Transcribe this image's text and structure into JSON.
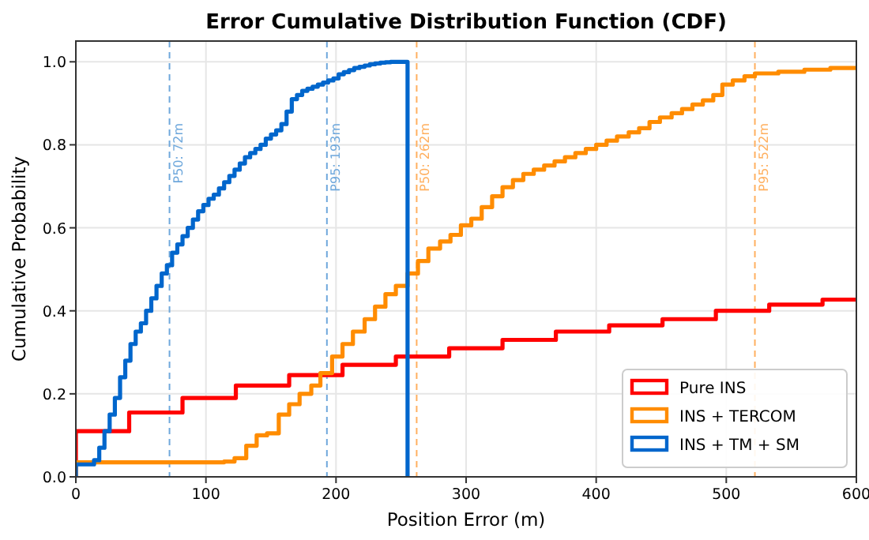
{
  "chart_data": {
    "type": "step",
    "title": "Error Cumulative Distribution Function (CDF)",
    "xlabel": "Position Error (m)",
    "ylabel": "Cumulative Probability",
    "xlim": [
      0,
      600
    ],
    "ylim": [
      0,
      1.05
    ],
    "xticks": [
      0,
      100,
      200,
      300,
      400,
      500,
      600
    ],
    "yticks": [
      {
        "value": 0,
        "label": "0.0"
      },
      0.2,
      0.4,
      0.6,
      0.8,
      {
        "value": 1,
        "label": "1.0"
      }
    ],
    "grid": true,
    "legend": "bottom right",
    "line_style": "solid",
    "series": [
      {
        "name": "Pure INS",
        "color": "#ff0000",
        "x": [
          0,
          0,
          41,
          82,
          123,
          164,
          205,
          246,
          287,
          328,
          369,
          410,
          451,
          492,
          533,
          574,
          600
        ],
        "values": [
          0,
          0.11,
          0.155,
          0.19,
          0.22,
          0.245,
          0.27,
          0.29,
          0.31,
          0.33,
          0.35,
          0.365,
          0.38,
          0.4,
          0.415,
          0.427,
          0.427
        ]
      },
      {
        "name": "INS + TERCOM",
        "color": "#ff8c00",
        "x": [
          0,
          0,
          114,
          122,
          131,
          139,
          147,
          156,
          164,
          172,
          181,
          188,
          197,
          205,
          213,
          222,
          230,
          238,
          246,
          255,
          263,
          271,
          280,
          288,
          296,
          304,
          312,
          320,
          328,
          336,
          344,
          352,
          360,
          368,
          376,
          384,
          392,
          400,
          408,
          416,
          425,
          433,
          441,
          449,
          458,
          466,
          474,
          482,
          490,
          497,
          505,
          514,
          522,
          540,
          560,
          580,
          600
        ],
        "values": [
          0,
          0.035,
          0.037,
          0.045,
          0.075,
          0.1,
          0.105,
          0.15,
          0.175,
          0.2,
          0.22,
          0.25,
          0.29,
          0.32,
          0.35,
          0.38,
          0.41,
          0.44,
          0.46,
          0.49,
          0.52,
          0.55,
          0.567,
          0.583,
          0.606,
          0.622,
          0.65,
          0.676,
          0.698,
          0.715,
          0.73,
          0.74,
          0.75,
          0.76,
          0.77,
          0.78,
          0.79,
          0.8,
          0.81,
          0.82,
          0.83,
          0.84,
          0.855,
          0.866,
          0.876,
          0.886,
          0.897,
          0.907,
          0.92,
          0.945,
          0.955,
          0.965,
          0.972,
          0.976,
          0.981,
          0.985,
          0.988
        ]
      },
      {
        "name": "INS + TM + SM",
        "color": "#0066cc",
        "x": [
          0,
          0,
          14,
          18,
          22,
          26,
          30,
          34,
          38,
          42,
          46,
          50,
          54,
          58,
          62,
          66,
          70,
          74,
          78,
          82,
          86,
          90,
          94,
          98,
          102,
          106,
          110,
          114,
          118,
          122,
          126,
          130,
          134,
          138,
          142,
          146,
          150,
          154,
          158,
          162,
          166,
          170,
          174,
          178,
          182,
          186,
          190,
          194,
          198,
          202,
          206,
          210,
          214,
          218,
          222,
          226,
          230,
          234,
          238,
          242,
          255,
          255
        ],
        "values": [
          0,
          0.03,
          0.04,
          0.07,
          0.11,
          0.15,
          0.19,
          0.24,
          0.28,
          0.32,
          0.35,
          0.37,
          0.4,
          0.43,
          0.46,
          0.49,
          0.51,
          0.54,
          0.56,
          0.58,
          0.6,
          0.62,
          0.64,
          0.655,
          0.67,
          0.68,
          0.695,
          0.71,
          0.725,
          0.74,
          0.755,
          0.77,
          0.78,
          0.79,
          0.8,
          0.815,
          0.825,
          0.835,
          0.85,
          0.88,
          0.91,
          0.92,
          0.93,
          0.935,
          0.94,
          0.945,
          0.95,
          0.955,
          0.96,
          0.97,
          0.975,
          0.98,
          0.985,
          0.988,
          0.991,
          0.994,
          0.996,
          0.998,
          0.999,
          1,
          1,
          0
        ]
      }
    ],
    "ref_lines": [
      {
        "axis": "x",
        "value": 72,
        "label": "P50: 72m",
        "color": "#6fa8dc",
        "line_style": "dashed"
      },
      {
        "axis": "x",
        "value": 193,
        "label": "P95: 193m",
        "color": "#6fa8dc",
        "line_style": "dashed"
      },
      {
        "axis": "x",
        "value": 262,
        "label": "P50: 262m",
        "color": "#ffb060",
        "line_style": "dashed"
      },
      {
        "axis": "x",
        "value": 522,
        "label": "P95: 522m",
        "color": "#ffb060",
        "line_style": "dashed"
      }
    ]
  }
}
